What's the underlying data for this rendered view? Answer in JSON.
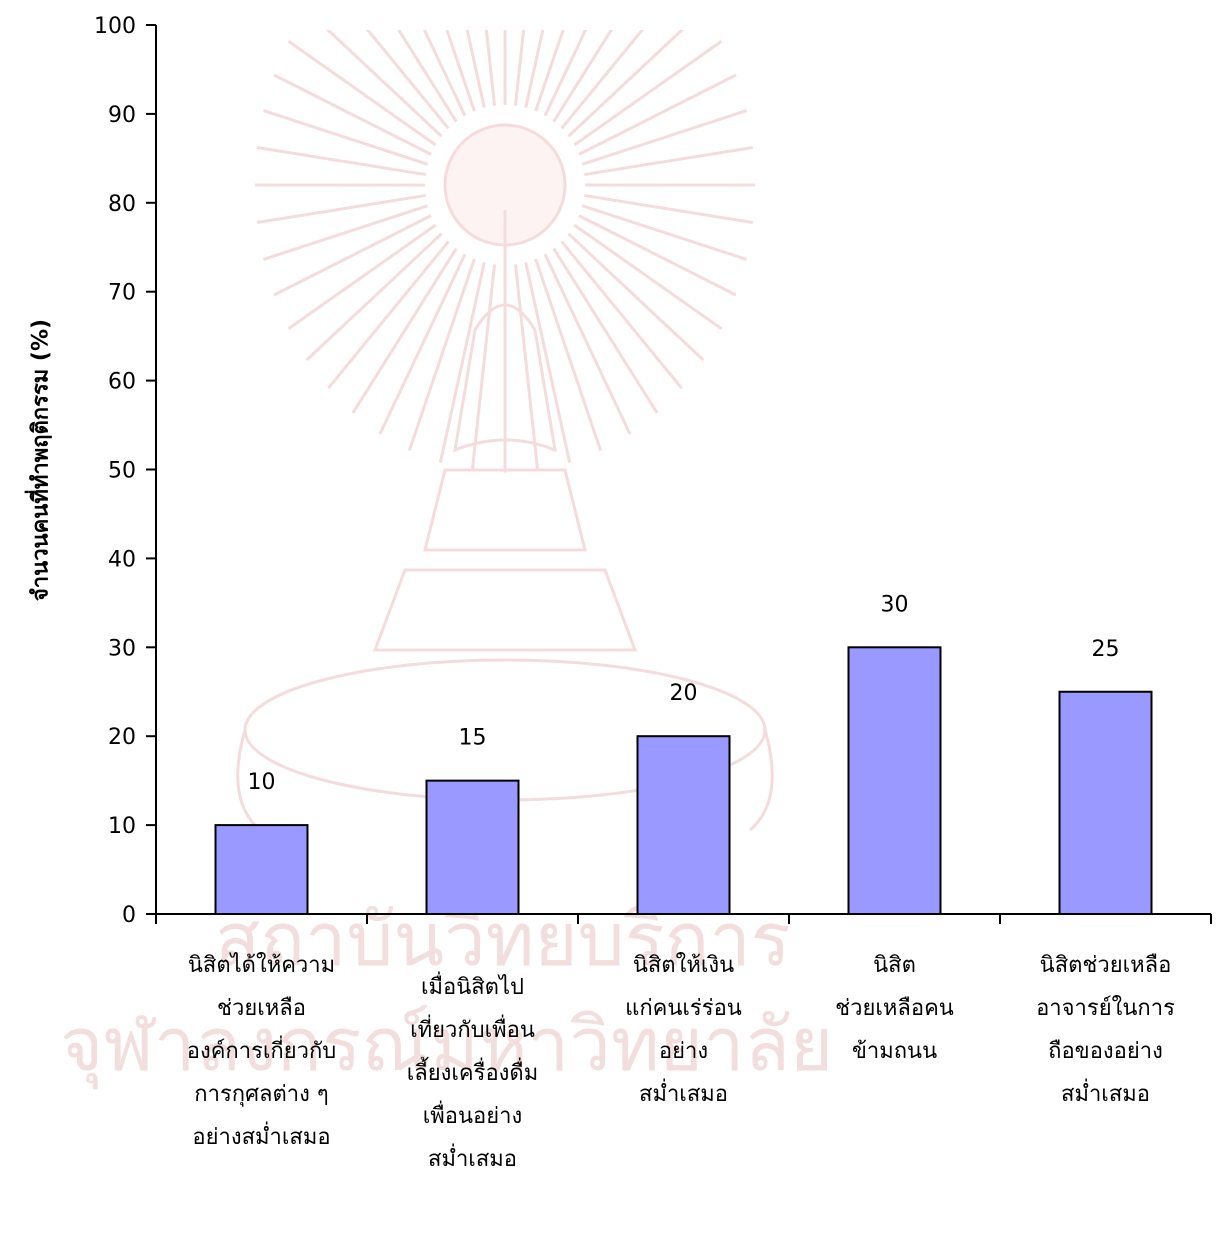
{
  "chart_data": {
    "type": "bar",
    "ylabel": "จำนวนคนที่ทำพฤติกรรม (%)",
    "xlabel": "",
    "ylim": [
      0,
      100
    ],
    "yticks": [
      0,
      10,
      20,
      30,
      40,
      50,
      60,
      70,
      80,
      90,
      100
    ],
    "categories": [
      [
        "นิสิตได้ให้ความ",
        "ช่วยเหลือ",
        "องค์การเกี่ยวกับ",
        "การกุศลต่าง ๆ",
        "อย่างสม่ำเสมอ"
      ],
      [
        "เมื่อนิสิตไป",
        "เที่ยวกับเพื่อน",
        "เลี้ยงเครื่องดื่ม",
        "เพื่อนอย่าง",
        "สม่ำเสมอ"
      ],
      [
        "นิสิตให้เงิน",
        "แก่คนเร่ร่อน",
        "อย่าง",
        "สม่ำเสมอ"
      ],
      [
        "นิสิต",
        "ช่วยเหลือคน",
        "ข้ามถนน"
      ],
      [
        "นิสิตช่วยเหลือ",
        "อาจารย์ในการ",
        "ถือของอย่าง",
        "สม่ำเสมอ"
      ]
    ],
    "values": [
      10,
      15,
      20,
      30,
      25
    ],
    "data_labels": [
      "10",
      "15",
      "20",
      "30",
      "25"
    ],
    "bar_color": "#9999ff",
    "bar_border": "#000000",
    "grid": false,
    "legend": "none"
  },
  "watermark": {
    "texts": [
      "สถาบันวิทยบริการ",
      "จุฬาลงกรณ์มหาวิทยาลัย"
    ],
    "color": "#f2d7d7"
  }
}
